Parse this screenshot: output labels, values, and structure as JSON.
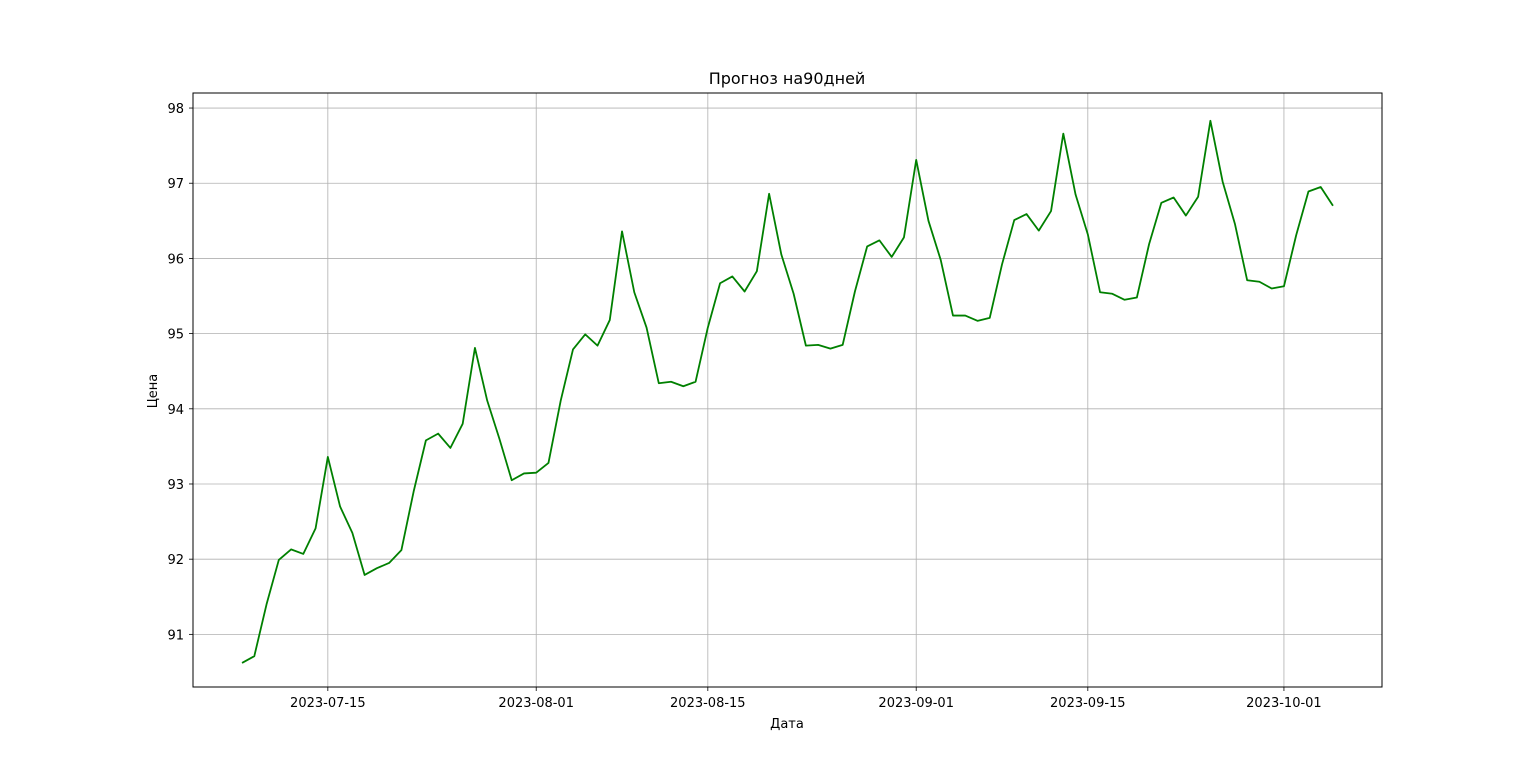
{
  "chart_data": {
    "type": "line",
    "title": "Прогноз на90дней",
    "xlabel": "Дата",
    "ylabel": "Цена",
    "x_start": "2023-07-08",
    "x_ticks": [
      "2023-07-15",
      "2023-08-01",
      "2023-08-15",
      "2023-09-01",
      "2023-09-15",
      "2023-10-01"
    ],
    "y_ticks": [
      91,
      92,
      93,
      94,
      95,
      96,
      97,
      98
    ],
    "xlim": [
      "2023-07-04",
      "2023-10-09"
    ],
    "ylim": [
      90.3,
      98.2
    ],
    "grid": true,
    "line_color": "#008000",
    "series": [
      {
        "values": [
          90.62,
          90.71,
          91.4,
          91.99,
          92.13,
          92.07,
          92.41,
          93.36,
          92.7,
          92.35,
          91.79,
          91.88,
          91.95,
          92.12,
          92.9,
          93.58,
          93.67,
          93.48,
          93.8,
          94.81,
          94.11,
          93.6,
          93.05,
          93.14,
          93.15,
          93.28,
          94.11,
          94.79,
          94.99,
          94.84,
          95.18,
          96.36,
          95.55,
          95.08,
          94.34,
          94.36,
          94.3,
          94.36,
          95.08,
          95.67,
          95.76,
          95.56,
          95.83,
          96.86,
          96.05,
          95.53,
          94.84,
          94.85,
          94.8,
          94.85,
          95.56,
          96.16,
          96.24,
          96.02,
          96.28,
          97.31,
          96.5,
          95.98,
          95.24,
          95.24,
          95.17,
          95.21,
          95.92,
          96.51,
          96.59,
          96.37,
          96.63,
          97.66,
          96.85,
          96.32,
          95.55,
          95.53,
          95.45,
          95.48,
          96.19,
          96.74,
          96.81,
          96.57,
          96.82,
          97.83,
          97.02,
          96.46,
          95.71,
          95.69,
          95.6,
          95.63,
          96.31,
          96.89,
          96.95,
          96.7
        ]
      }
    ]
  }
}
